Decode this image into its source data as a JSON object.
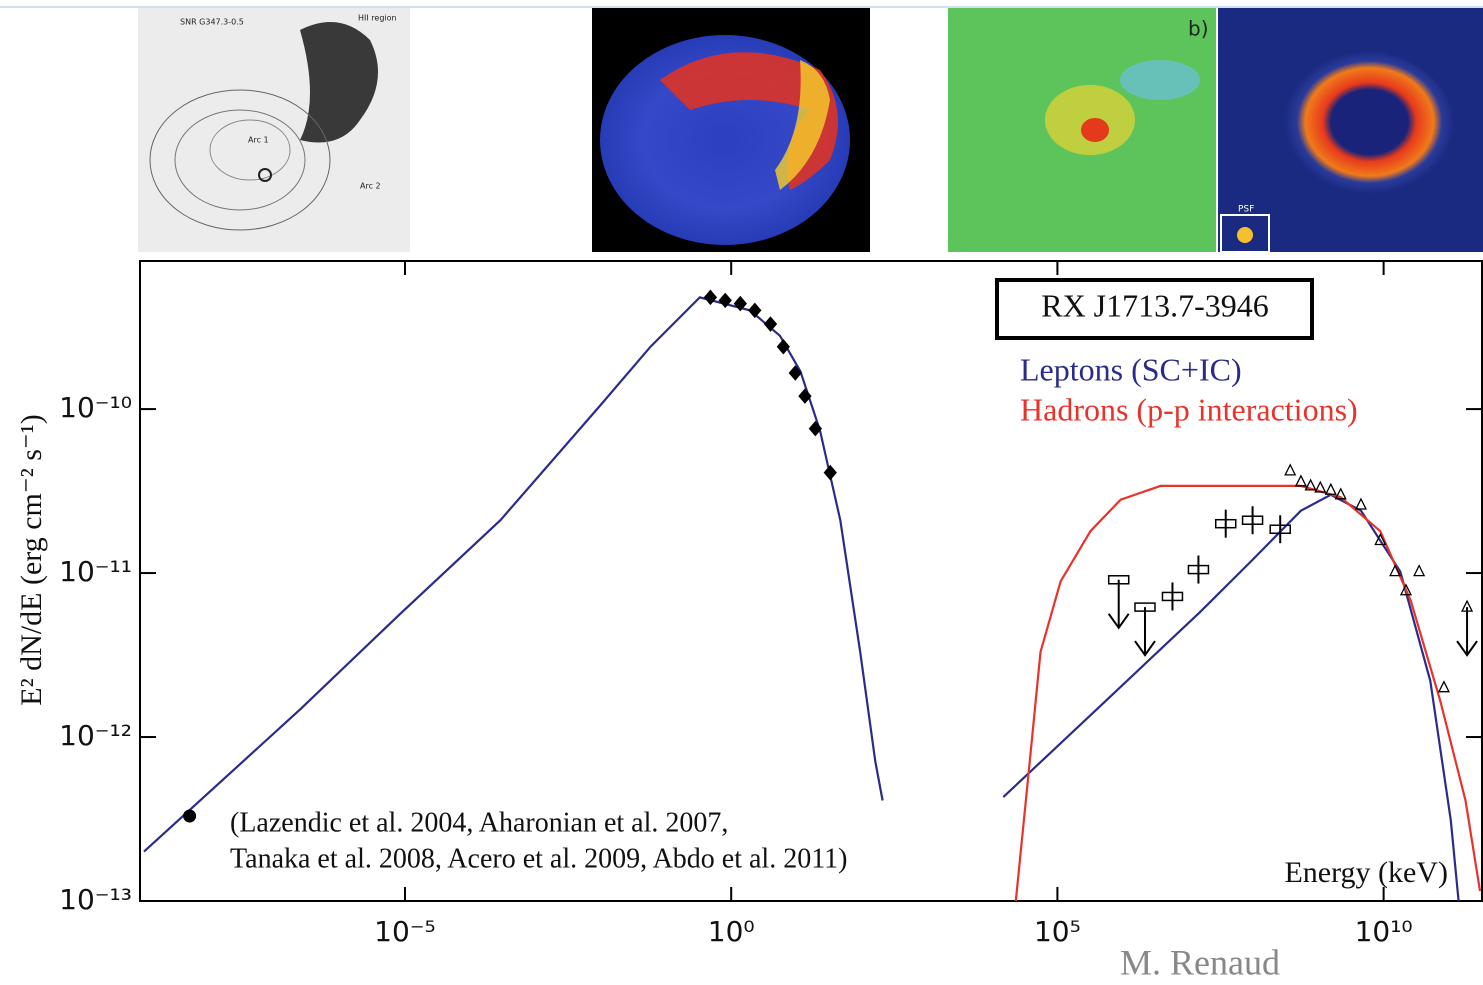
{
  "images": {
    "panel_1_labels": [
      "SNR G347.3-0.5",
      "HII region",
      "Arc 1",
      "Arc 2"
    ],
    "panel_3_label": "b)",
    "panel_4_label": "PSF"
  },
  "chart_data": {
    "type": "line",
    "title": "RX J1713.7-3946",
    "xlabel": "Energy (keV)",
    "ylabel": "E² dN/dE (erg cm⁻² s⁻¹)",
    "annotation": [
      "(Lazendic et al. 2004, Aharonian et al. 2007,",
      "Tanaka et al. 2008, Acero et al. 2009, Abdo et al. 2011)"
    ],
    "xscale": "log",
    "yscale": "log",
    "xlim": [
      1e-09,
      300000000000.0
    ],
    "ylim": [
      1e-13,
      8e-10
    ],
    "xticks": [
      {
        "value": 1e-05,
        "label": "10⁻⁵"
      },
      {
        "value": 1,
        "label": "10⁰"
      },
      {
        "value": 100000,
        "label": "10⁵"
      },
      {
        "value": 10000000000,
        "label": "10¹⁰"
      }
    ],
    "yticks": [
      {
        "value": 1e-13,
        "label": "10⁻¹³"
      },
      {
        "value": 1e-12,
        "label": "10⁻¹²"
      },
      {
        "value": 1e-11,
        "label": "10⁻¹¹"
      },
      {
        "value": 1e-10,
        "label": "10⁻¹⁰"
      }
    ],
    "series": [
      {
        "name": "Leptons (SC+IC)",
        "color": "#2b2b8c",
        "x": [
          1e-09,
          2.5e-07,
          8.3e-06,
          0.00029,
          0.0098,
          0.058,
          0.33,
          1.95,
          5.6,
          11.5,
          23,
          47,
          95,
          162,
          209,
          600,
          14800,
          457000,
          15500000,
          91000000,
          540000000,
          1550000000,
          4500000000,
          18000000000,
          52000000000,
          107000000000,
          141000000000
        ],
        "values": [
          2e-13,
          1.48e-12,
          5.6e-12,
          2.1e-11,
          1.05e-10,
          2.4e-10,
          4.8e-10,
          4e-10,
          2.8e-10,
          1.7e-10,
          7.4e-11,
          2.1e-11,
          3.3e-12,
          7.1e-13,
          4.1e-13,
          null,
          4.3e-13,
          1.55e-12,
          5.8e-12,
          1.17e-11,
          2.4e-11,
          3e-11,
          2.4e-11,
          1.02e-11,
          2.2e-12,
          3.1e-13,
          1e-13
        ]
      },
      {
        "name": "Hadrons (p-p interactions)",
        "color": "#e8322a",
        "x": [
          23000,
          39000,
          55000,
          112000,
          320000,
          930000,
          3800000,
          540000000,
          2200000000,
          8900000000,
          26000000000,
          74000000000,
          180000000000,
          300000000000
        ],
        "values": [
          1e-13,
          8.1e-13,
          3.3e-12,
          8.9e-12,
          1.8e-11,
          2.8e-11,
          3.4e-11,
          3.4e-11,
          2.9e-11,
          1.8e-11,
          6.8e-12,
          1.66e-12,
          4.1e-13,
          1.15e-13
        ]
      }
    ],
    "markers": [
      {
        "marker": "circle",
        "color": "#000000",
        "x": [
          5e-09
        ],
        "values": [
          3.3e-13
        ]
      },
      {
        "marker": "diamond",
        "color": "#000000",
        "x": [
          0.48,
          0.81,
          1.38,
          2.3,
          4.0,
          6.3,
          9.6,
          13.5,
          19.5,
          33
        ],
        "values": [
          4.8e-10,
          4.6e-10,
          4.4e-10,
          4e-10,
          3.3e-10,
          2.4e-10,
          1.66e-10,
          1.2e-10,
          7.6e-11,
          4.1e-11
        ]
      },
      {
        "marker": "square",
        "color": "#000000",
        "x": [
          870000,
          2200000,
          5800000,
          14500000,
          38000000,
          98000000,
          260000000
        ],
        "values": [
          9.1e-12,
          6.2e-12,
          7.2e-12,
          1.05e-11,
          2e-11,
          2.1e-11,
          1.85e-11
        ],
        "upper_limits": [
          true,
          true,
          false,
          false,
          false,
          false,
          false
        ]
      },
      {
        "marker": "triangle",
        "color": "#000000",
        "x": [
          370000000,
          540000000,
          760000000,
          1070000000,
          1550000000,
          2200000000,
          4500000000,
          8900000000,
          15000000000,
          22000000000,
          35000000000,
          84000000000,
          190000000000
        ],
        "values": [
          4.2e-11,
          3.6e-11,
          3.4e-11,
          3.3e-11,
          3.2e-11,
          3e-11,
          2.6e-11,
          1.58e-11,
          1.02e-11,
          7.8e-12,
          1.02e-11,
          2e-12,
          6.2e-12
        ],
        "upper_limits": [
          false,
          false,
          false,
          false,
          false,
          false,
          false,
          false,
          false,
          false,
          false,
          false,
          true
        ]
      }
    ]
  },
  "footer": {
    "credit": "M. Renaud"
  }
}
